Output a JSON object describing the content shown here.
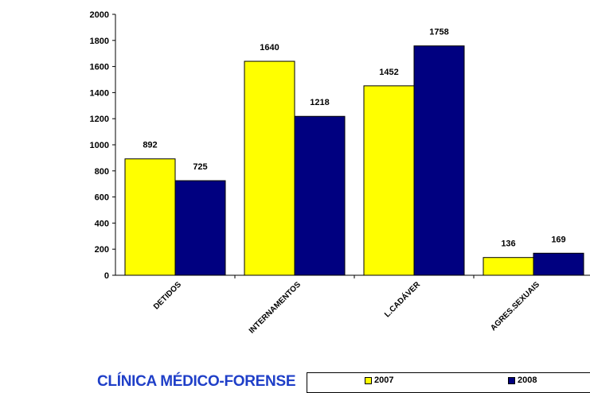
{
  "chart_data": {
    "type": "bar",
    "categories": [
      "DETIDOS",
      "INTERNAMENTOS",
      "L.CADÁVER",
      "AGRES.SEXUAIS"
    ],
    "series": [
      {
        "name": "2007",
        "values": [
          892,
          1640,
          1452,
          136
        ],
        "color": "#ffff00"
      },
      {
        "name": "2008",
        "values": [
          725,
          1218,
          1758,
          169
        ],
        "color": "#000080"
      }
    ],
    "ylim": [
      0,
      2000
    ],
    "yticks": [
      "0",
      "200",
      "400",
      "600",
      "800",
      "1000",
      "1200",
      "1400",
      "1600",
      "1800",
      "2000"
    ],
    "title": "",
    "xlabel": "",
    "ylabel": "",
    "legend_position": "bottom-right",
    "grid": false
  },
  "footer": {
    "title": "CLÍNICA MÉDICO-FORENSE"
  }
}
